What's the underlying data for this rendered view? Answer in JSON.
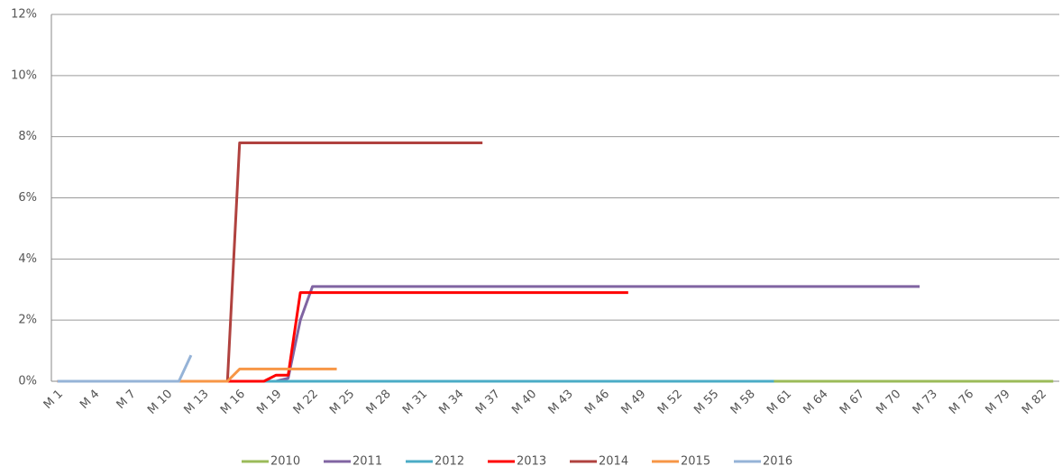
{
  "chart_data": {
    "type": "line",
    "categories": [
      "M 1",
      null,
      null,
      "M 4",
      null,
      null,
      "M 7",
      null,
      null,
      "M 10",
      null,
      null,
      "M 13",
      null,
      null,
      "M 16",
      null,
      null,
      "M 19",
      null,
      null,
      "M 22",
      null,
      null,
      "M 25",
      null,
      null,
      "M 28",
      null,
      null,
      "M 31",
      null,
      null,
      "M 34",
      null,
      null,
      "M 37",
      null,
      null,
      "M 40",
      null,
      null,
      "M 43",
      null,
      null,
      "M 46",
      null,
      null,
      "M 49",
      null,
      null,
      "M 52",
      null,
      null,
      "M 55",
      null,
      null,
      "M 58",
      null,
      null,
      "M 61",
      null,
      null,
      "M 64",
      null,
      null,
      "M 67",
      null,
      null,
      "M 70",
      null,
      null,
      "M 73",
      null,
      null,
      "M 76",
      null,
      null,
      "M 79",
      null,
      null,
      "M 82",
      null
    ],
    "ylim": [
      0,
      12
    ],
    "yticks": [
      {
        "value": 0,
        "label": "0%"
      },
      {
        "value": 2,
        "label": "2%"
      },
      {
        "value": 4,
        "label": "4%"
      },
      {
        "value": 6,
        "label": "6%"
      },
      {
        "value": 8,
        "label": "8%"
      },
      {
        "value": 10,
        "label": "10%"
      },
      {
        "value": 12,
        "label": "12%"
      }
    ],
    "grid": true,
    "legend": "bottom",
    "series": [
      {
        "name": "2010",
        "color": "#9bbb59",
        "values": [
          0,
          0,
          0,
          0,
          0,
          0,
          0,
          0,
          0,
          0,
          0,
          0,
          0,
          0,
          0,
          0,
          0,
          0,
          0,
          0,
          0,
          0,
          0,
          0,
          0,
          0,
          0,
          0,
          0,
          0,
          0,
          0,
          0,
          0,
          0,
          0,
          0,
          0,
          0,
          0,
          0,
          0,
          0,
          0,
          0,
          0,
          0,
          0,
          0,
          0,
          0,
          0,
          0,
          0,
          0,
          0,
          0,
          0,
          0,
          0,
          0,
          0,
          0,
          0,
          0,
          0,
          0,
          0,
          0,
          0,
          0,
          0,
          0,
          0,
          0,
          0,
          0,
          0,
          0,
          0,
          0,
          0,
          0
        ]
      },
      {
        "name": "2011",
        "color": "#8064a2",
        "values": [
          0,
          0,
          0,
          0,
          0,
          0,
          0,
          0,
          0,
          0,
          0,
          0,
          0,
          0,
          0,
          0,
          0,
          0,
          0,
          0.1,
          2.0,
          3.1,
          3.1,
          3.1,
          3.1,
          3.1,
          3.1,
          3.1,
          3.1,
          3.1,
          3.1,
          3.1,
          3.1,
          3.1,
          3.1,
          3.1,
          3.1,
          3.1,
          3.1,
          3.1,
          3.1,
          3.1,
          3.1,
          3.1,
          3.1,
          3.1,
          3.1,
          3.1,
          3.1,
          3.1,
          3.1,
          3.1,
          3.1,
          3.1,
          3.1,
          3.1,
          3.1,
          3.1,
          3.1,
          3.1,
          3.1,
          3.1,
          3.1,
          3.1,
          3.1,
          3.1,
          3.1,
          3.1,
          3.1,
          3.1,
          3.1,
          3.1,
          null,
          null,
          null,
          null,
          null,
          null,
          null,
          null,
          null,
          null,
          null
        ]
      },
      {
        "name": "2012",
        "color": "#4bacc6",
        "values": [
          0,
          0,
          0,
          0,
          0,
          0,
          0,
          0,
          0,
          0,
          0,
          0,
          0,
          0,
          0,
          0,
          0,
          0,
          0,
          0,
          0,
          0,
          0,
          0,
          0,
          0,
          0,
          0,
          0,
          0,
          0,
          0,
          0,
          0,
          0,
          0,
          0,
          0,
          0,
          0,
          0,
          0,
          0,
          0,
          0,
          0,
          0,
          0,
          0,
          0,
          0,
          0,
          0,
          0,
          0,
          0,
          0,
          0,
          0,
          0,
          null,
          null,
          null,
          null,
          null,
          null,
          null,
          null,
          null,
          null,
          null,
          null,
          null,
          null,
          null,
          null,
          null,
          null,
          null,
          null,
          null,
          null,
          null
        ]
      },
      {
        "name": "2013",
        "color": "#ff0000",
        "values": [
          0,
          0,
          0,
          0,
          0,
          0,
          0,
          0,
          0,
          0,
          0,
          0,
          0,
          0,
          0,
          0,
          0,
          0,
          0.2,
          0.2,
          2.9,
          2.9,
          2.9,
          2.9,
          2.9,
          2.9,
          2.9,
          2.9,
          2.9,
          2.9,
          2.9,
          2.9,
          2.9,
          2.9,
          2.9,
          2.9,
          2.9,
          2.9,
          2.9,
          2.9,
          2.9,
          2.9,
          2.9,
          2.9,
          2.9,
          2.9,
          2.9,
          2.9,
          null,
          null,
          null,
          null,
          null,
          null,
          null,
          null,
          null,
          null,
          null,
          null,
          null,
          null,
          null,
          null,
          null,
          null,
          null,
          null,
          null,
          null,
          null,
          null,
          null,
          null,
          null,
          null,
          null,
          null,
          null,
          null,
          null,
          null,
          null
        ]
      },
      {
        "name": "2014",
        "color": "#b0423f",
        "values": [
          0,
          0,
          0,
          0,
          0,
          0,
          0,
          0,
          0,
          0,
          0,
          0,
          0,
          0,
          0,
          7.8,
          7.8,
          7.8,
          7.8,
          7.8,
          7.8,
          7.8,
          7.8,
          7.8,
          7.8,
          7.8,
          7.8,
          7.8,
          7.8,
          7.8,
          7.8,
          7.8,
          7.8,
          7.8,
          7.8,
          7.8,
          null,
          null,
          null,
          null,
          null,
          null,
          null,
          null,
          null,
          null,
          null,
          null,
          null,
          null,
          null,
          null,
          null,
          null,
          null,
          null,
          null,
          null,
          null,
          null,
          null,
          null,
          null,
          null,
          null,
          null,
          null,
          null,
          null,
          null,
          null,
          null,
          null,
          null,
          null,
          null,
          null,
          null,
          null,
          null,
          null,
          null,
          null
        ]
      },
      {
        "name": "2015",
        "color": "#f79646",
        "values": [
          0,
          0,
          0,
          0,
          0,
          0,
          0,
          0,
          0,
          0,
          0,
          0,
          0,
          0,
          0,
          0.4,
          0.4,
          0.4,
          0.4,
          0.4,
          0.4,
          0.4,
          0.4,
          0.4,
          null,
          null,
          null,
          null,
          null,
          null,
          null,
          null,
          null,
          null,
          null,
          null,
          null,
          null,
          null,
          null,
          null,
          null,
          null,
          null,
          null,
          null,
          null,
          null,
          null,
          null,
          null,
          null,
          null,
          null,
          null,
          null,
          null,
          null,
          null,
          null,
          null,
          null,
          null,
          null,
          null,
          null,
          null,
          null,
          null,
          null,
          null,
          null,
          null,
          null,
          null,
          null,
          null,
          null,
          null,
          null,
          null,
          null,
          null
        ]
      },
      {
        "name": "2016",
        "color": "#95b3d7",
        "values": [
          0,
          0,
          0,
          0,
          0,
          0,
          0,
          0,
          0,
          0,
          0,
          0.85,
          null,
          null,
          null,
          null,
          null,
          null,
          null,
          null,
          null,
          null,
          null,
          null,
          null,
          null,
          null,
          null,
          null,
          null,
          null,
          null,
          null,
          null,
          null,
          null,
          null,
          null,
          null,
          null,
          null,
          null,
          null,
          null,
          null,
          null,
          null,
          null,
          null,
          null,
          null,
          null,
          null,
          null,
          null,
          null,
          null,
          null,
          null,
          null,
          null,
          null,
          null,
          null,
          null,
          null,
          null,
          null,
          null,
          null,
          null,
          null,
          null,
          null,
          null,
          null,
          null,
          null,
          null,
          null,
          null,
          null,
          null
        ]
      }
    ]
  }
}
